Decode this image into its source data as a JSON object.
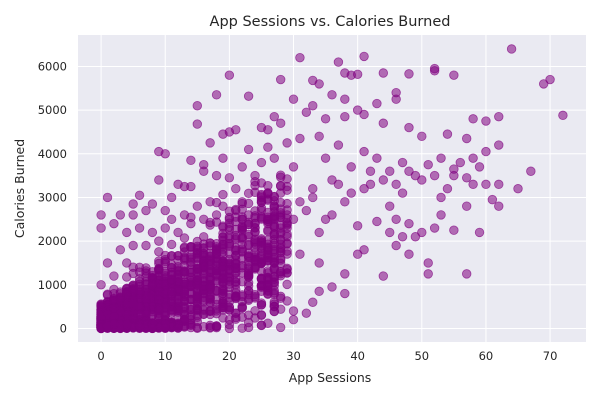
{
  "chart_data": {
    "type": "scatter",
    "title": "App Sessions vs. Calories Burned",
    "xlabel": "App Sessions",
    "ylabel": "Calories Burned",
    "xlim": [
      -3.6,
      75.6
    ],
    "ylim": [
      -310,
      6720
    ],
    "xticks": [
      0,
      10,
      20,
      30,
      40,
      50,
      60,
      70
    ],
    "yticks": [
      0,
      1000,
      2000,
      3000,
      4000,
      5000,
      6000
    ],
    "grid": true,
    "legend": "none",
    "colors": {
      "point": "#800080",
      "plot_background": "#eaeaf2",
      "grid": "#ffffff"
    },
    "point_alpha": 0.55,
    "points": [
      [
        64,
        6400
      ],
      [
        70,
        5700
      ],
      [
        69,
        5600
      ],
      [
        72,
        4880
      ],
      [
        31,
        6200
      ],
      [
        41,
        6230
      ],
      [
        37,
        6100
      ],
      [
        38,
        5850
      ],
      [
        39,
        5800
      ],
      [
        40,
        5820
      ],
      [
        44,
        5850
      ],
      [
        52,
        5950
      ],
      [
        52,
        5900
      ],
      [
        55,
        5800
      ],
      [
        48,
        5830
      ],
      [
        20,
        5800
      ],
      [
        18,
        5350
      ],
      [
        23,
        5320
      ],
      [
        28,
        5700
      ],
      [
        33,
        5680
      ],
      [
        34,
        5600
      ],
      [
        36,
        5350
      ],
      [
        38,
        5250
      ],
      [
        30,
        5250
      ],
      [
        33,
        5100
      ],
      [
        46,
        5400
      ],
      [
        46,
        5250
      ],
      [
        43,
        5150
      ],
      [
        40,
        5000
      ],
      [
        15,
        5100
      ],
      [
        15,
        4680
      ],
      [
        25,
        4600
      ],
      [
        26,
        4550
      ],
      [
        27,
        4850
      ],
      [
        28,
        4700
      ],
      [
        32,
        4950
      ],
      [
        35,
        4800
      ],
      [
        38,
        4850
      ],
      [
        41,
        4900
      ],
      [
        44,
        4700
      ],
      [
        48,
        4600
      ],
      [
        50,
        4400
      ],
      [
        54,
        4450
      ],
      [
        57,
        4350
      ],
      [
        58,
        4800
      ],
      [
        60,
        4750
      ],
      [
        62,
        4850
      ],
      [
        62,
        4200
      ],
      [
        60,
        4050
      ],
      [
        58,
        3900
      ],
      [
        56,
        3800
      ],
      [
        59,
        3700
      ],
      [
        55,
        3650
      ],
      [
        55,
        3500
      ],
      [
        57,
        3450
      ],
      [
        58,
        3300
      ],
      [
        60,
        3300
      ],
      [
        62,
        3300
      ],
      [
        65,
        3200
      ],
      [
        67,
        3600
      ],
      [
        61,
        2950
      ],
      [
        62,
        2800
      ],
      [
        57,
        2800
      ],
      [
        54,
        3200
      ],
      [
        53,
        3000
      ],
      [
        53,
        2600
      ],
      [
        52,
        2300
      ],
      [
        50,
        2200
      ],
      [
        48,
        2400
      ],
      [
        46,
        2500
      ],
      [
        45,
        2200
      ],
      [
        46,
        1900
      ],
      [
        48,
        1700
      ],
      [
        51,
        1500
      ],
      [
        51,
        1250
      ],
      [
        57,
        1250
      ],
      [
        59,
        2200
      ],
      [
        55,
        2250
      ],
      [
        49,
        2100
      ],
      [
        47,
        2100
      ],
      [
        43,
        2450
      ],
      [
        44,
        1200
      ],
      [
        38,
        1250
      ],
      [
        38,
        800
      ],
      [
        34,
        850
      ],
      [
        33,
        600
      ],
      [
        32,
        350
      ],
      [
        30,
        200
      ],
      [
        30,
        400
      ],
      [
        36,
        950
      ],
      [
        40,
        1700
      ],
      [
        41,
        1800
      ],
      [
        45,
        2800
      ],
      [
        42,
        3300
      ],
      [
        47,
        3100
      ],
      [
        49,
        3500
      ],
      [
        51,
        3750
      ],
      [
        53,
        3900
      ],
      [
        45,
        3600
      ],
      [
        43,
        3900
      ],
      [
        41,
        4050
      ],
      [
        39,
        3700
      ],
      [
        36,
        3400
      ],
      [
        35,
        3900
      ],
      [
        37,
        4200
      ],
      [
        34,
        4400
      ],
      [
        31,
        4350
      ],
      [
        29,
        4250
      ],
      [
        26,
        4150
      ],
      [
        23,
        4100
      ],
      [
        20,
        4500
      ],
      [
        21,
        4550
      ],
      [
        19,
        4450
      ],
      [
        17,
        4250
      ],
      [
        16,
        3750
      ],
      [
        14,
        3850
      ],
      [
        9,
        4050
      ],
      [
        10,
        4000
      ],
      [
        9,
        3400
      ],
      [
        12,
        3300
      ],
      [
        13,
        3250
      ],
      [
        14,
        3250
      ],
      [
        11,
        3000
      ],
      [
        10,
        2700
      ],
      [
        8,
        2850
      ],
      [
        7,
        2700
      ],
      [
        6,
        3050
      ],
      [
        5,
        2850
      ],
      [
        5,
        2600
      ],
      [
        3,
        2600
      ],
      [
        1,
        3000
      ],
      [
        0,
        2600
      ],
      [
        0,
        2300
      ],
      [
        4,
        2200
      ],
      [
        2,
        2400
      ],
      [
        6,
        2300
      ],
      [
        22,
        3700
      ],
      [
        25,
        3800
      ],
      [
        27,
        3900
      ],
      [
        24,
        3500
      ],
      [
        30,
        3700
      ],
      [
        33,
        3200
      ],
      [
        28,
        3100
      ],
      [
        18,
        3500
      ],
      [
        20,
        3450
      ],
      [
        16,
        3600
      ],
      [
        19,
        3900
      ],
      [
        31,
        2900
      ],
      [
        36,
        2600
      ],
      [
        40,
        2350
      ],
      [
        34,
        2200
      ],
      [
        29,
        2300
      ],
      [
        27,
        1900
      ],
      [
        31,
        1700
      ],
      [
        34,
        1500
      ],
      [
        28,
        1300
      ],
      [
        25,
        1150
      ],
      [
        26,
        850
      ],
      [
        24,
        700
      ],
      [
        27,
        500
      ],
      [
        25,
        300
      ],
      [
        20,
        200
      ],
      [
        22,
        500
      ],
      [
        21,
        250
      ],
      [
        0,
        1000
      ],
      [
        0,
        500
      ],
      [
        1,
        1500
      ],
      [
        2,
        1200
      ],
      [
        3,
        1800
      ],
      [
        4,
        1500
      ],
      [
        5,
        1900
      ],
      [
        6,
        1400
      ],
      [
        7,
        1900
      ],
      [
        8,
        2200
      ],
      [
        9,
        2000
      ],
      [
        10,
        2300
      ],
      [
        11,
        2500
      ],
      [
        12,
        2200
      ],
      [
        13,
        2600
      ],
      [
        14,
        2400
      ],
      [
        15,
        2800
      ],
      [
        16,
        2500
      ],
      [
        17,
        2900
      ],
      [
        18,
        2600
      ],
      [
        19,
        2800
      ],
      [
        20,
        2500
      ],
      [
        21,
        2700
      ],
      [
        22,
        2900
      ],
      [
        23,
        2600
      ],
      [
        24,
        2400
      ],
      [
        25,
        2700
      ],
      [
        26,
        2500
      ],
      [
        27,
        2800
      ],
      [
        28,
        2300
      ],
      [
        29,
        2600
      ],
      [
        30,
        2500
      ],
      [
        32,
        2700
      ],
      [
        35,
        2500
      ],
      [
        38,
        2900
      ],
      [
        39,
        3100
      ],
      [
        41,
        3200
      ],
      [
        44,
        3400
      ],
      [
        46,
        3300
      ],
      [
        48,
        3600
      ],
      [
        50,
        3400
      ],
      [
        52,
        3500
      ],
      [
        47,
        3800
      ],
      [
        42,
        3600
      ],
      [
        37,
        3300
      ],
      [
        33,
        3000
      ]
    ]
  }
}
